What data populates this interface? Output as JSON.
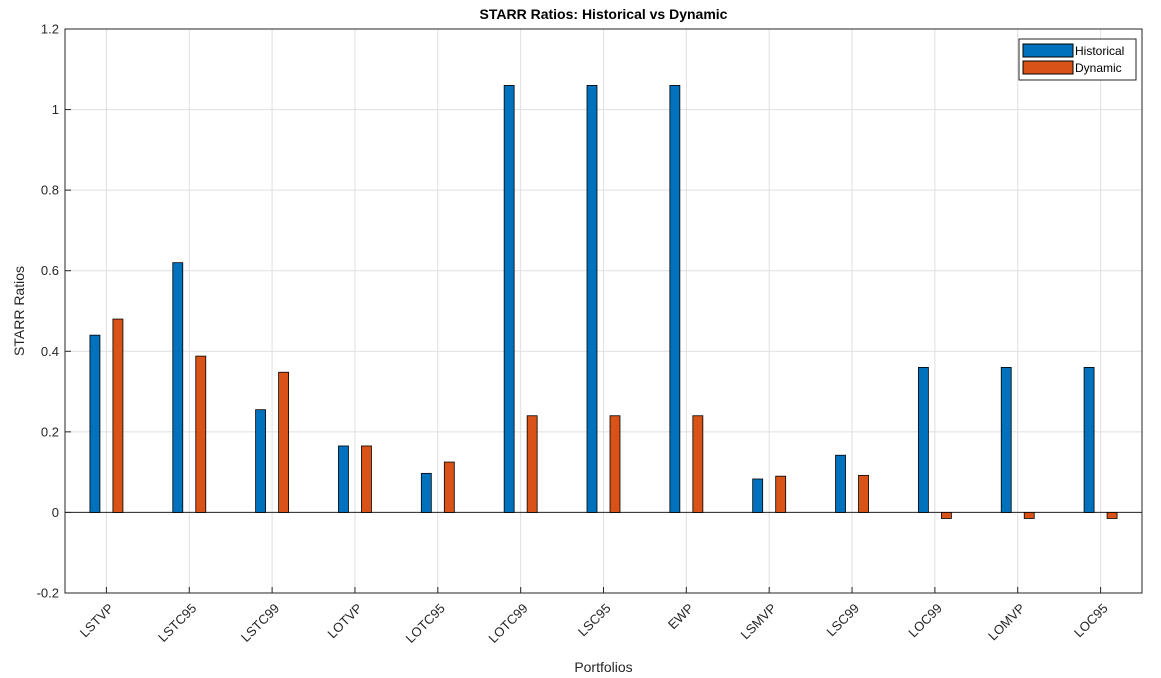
{
  "chart_data": {
    "type": "bar",
    "title": "STARR Ratios: Historical vs Dynamic",
    "xlabel": "Portfolios",
    "ylabel": "STARR Ratios",
    "ylim": [
      -0.2,
      1.2
    ],
    "yticks": [
      "-0.2",
      "0",
      "0.2",
      "0.4",
      "0.6",
      "0.8",
      "1",
      "1.2"
    ],
    "grid": true,
    "legend_position": "top-right",
    "categories": [
      "LSTVP",
      "LSTC95",
      "LSTC99",
      "LOTVP",
      "LOTC95",
      "LOTC99",
      "LSC95",
      "EWP",
      "LSMVP",
      "LSC99",
      "LOC99",
      "LOMVP",
      "LOC95"
    ],
    "series": [
      {
        "name": "Historical",
        "color": "#0072BD",
        "values": [
          0.44,
          0.62,
          0.255,
          0.165,
          0.097,
          1.06,
          1.06,
          1.06,
          0.083,
          0.142,
          0.36,
          0.36,
          0.36
        ]
      },
      {
        "name": "Dynamic",
        "color": "#D95319",
        "values": [
          0.48,
          0.388,
          0.348,
          0.165,
          0.125,
          0.24,
          0.24,
          0.24,
          0.09,
          0.092,
          -0.015,
          -0.015,
          -0.015
        ]
      }
    ]
  }
}
